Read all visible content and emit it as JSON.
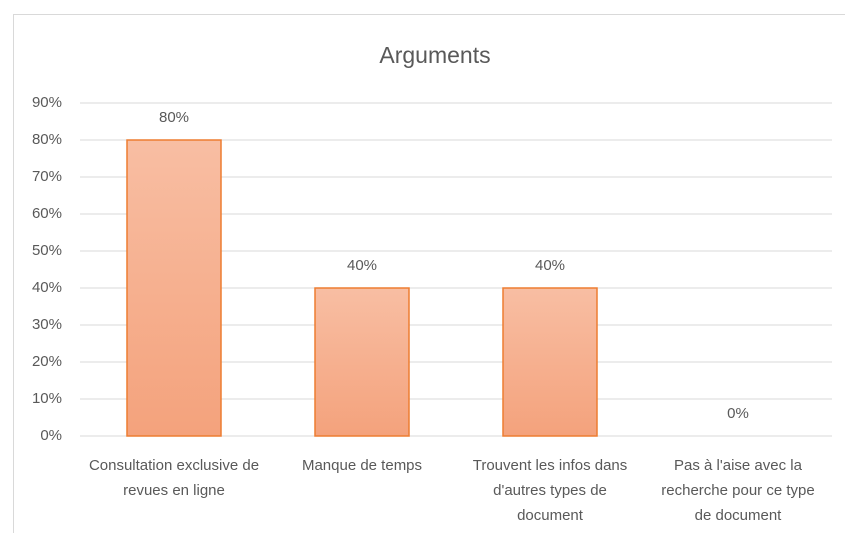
{
  "chart_data": {
    "type": "bar",
    "title": "Arguments",
    "categories": [
      "Consultation exclusive de revues en ligne",
      "Manque de temps",
      "Trouvent les infos dans d'autres types de document",
      "Pas à l'aise avec la recherche pour ce type de document"
    ],
    "values": [
      80,
      40,
      40,
      0
    ],
    "value_labels": [
      "80%",
      "40%",
      "40%",
      "0%"
    ],
    "color": "#f4a27c",
    "ylim": [
      0,
      90
    ],
    "yticks": [
      {
        "value": 0,
        "label": "0%"
      },
      {
        "value": 10,
        "label": "10%"
      },
      {
        "value": 20,
        "label": "20%"
      },
      {
        "value": 30,
        "label": "30%"
      },
      {
        "value": 40,
        "label": "40%"
      },
      {
        "value": 50,
        "label": "50%"
      },
      {
        "value": 60,
        "label": "60%"
      },
      {
        "value": 70,
        "label": "70%"
      },
      {
        "value": 80,
        "label": "80%"
      },
      {
        "value": 90,
        "label": "90%"
      }
    ],
    "grid": true
  }
}
